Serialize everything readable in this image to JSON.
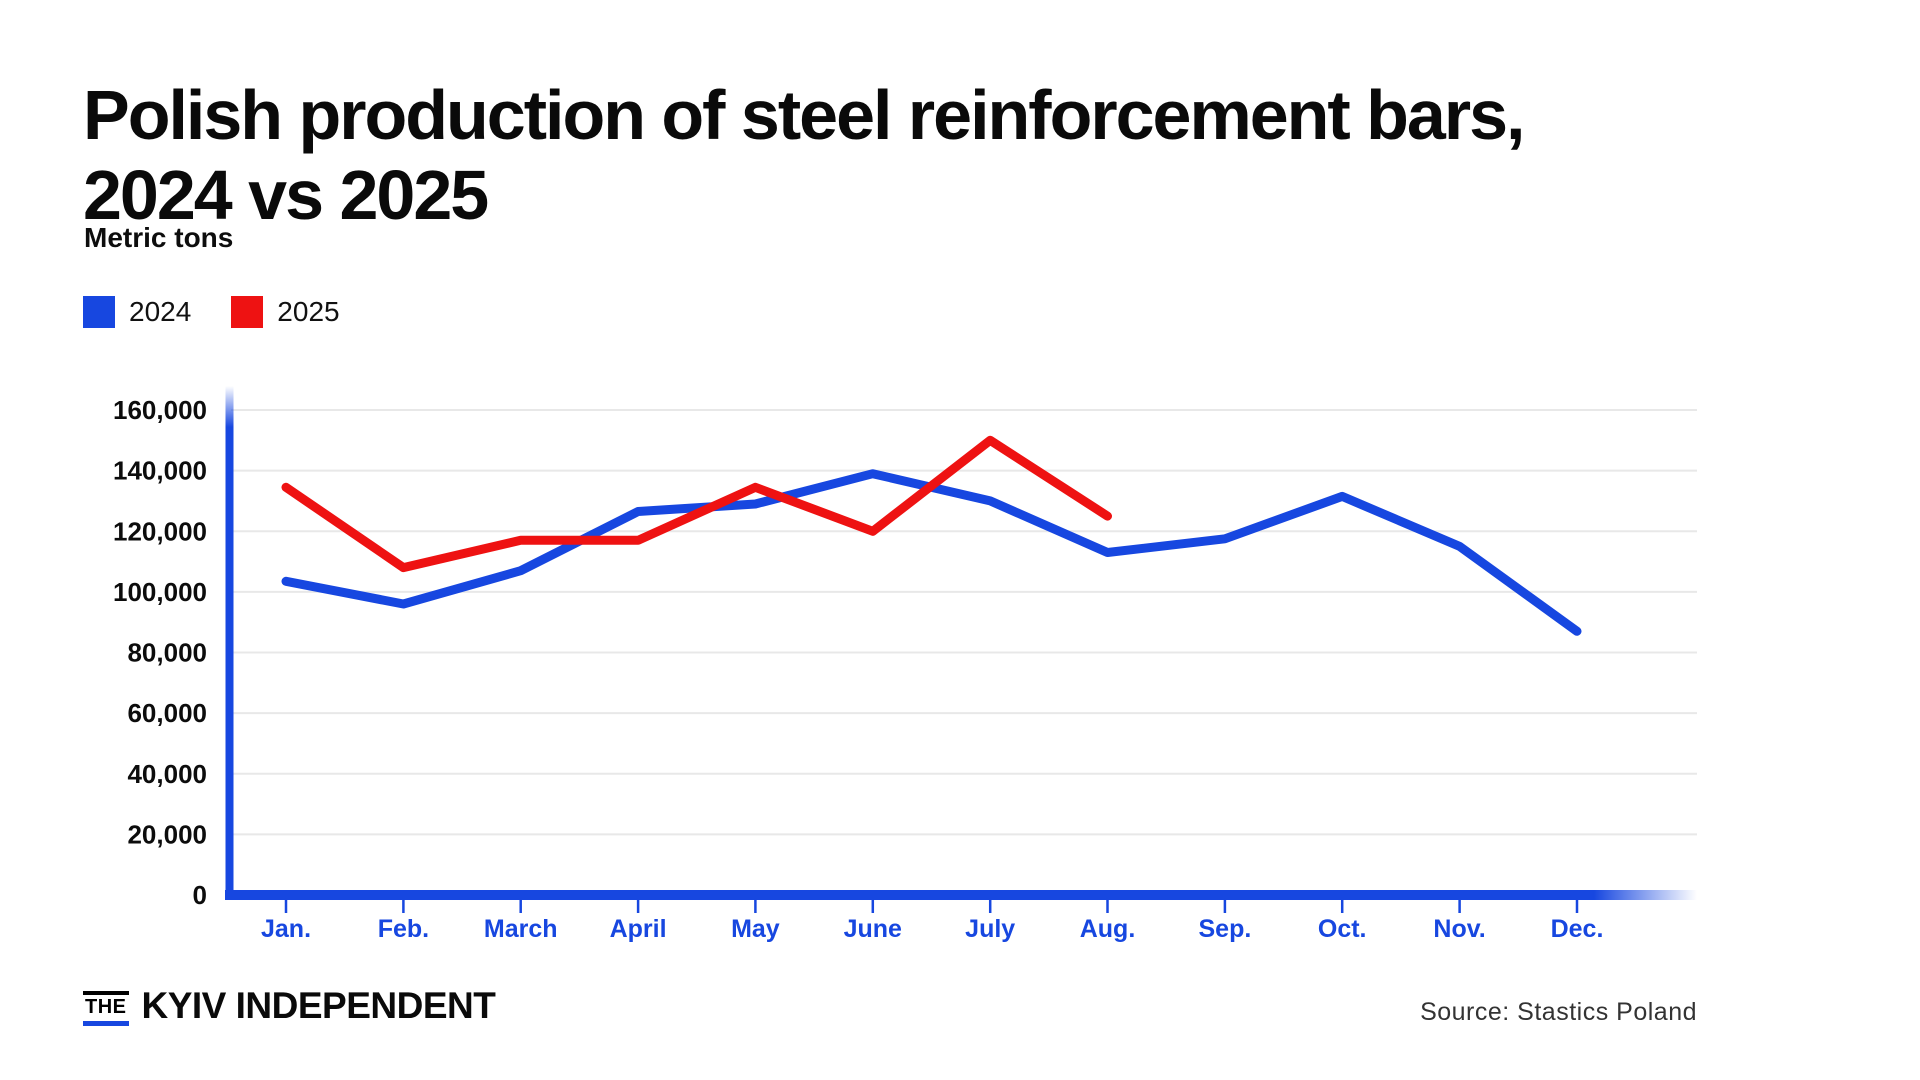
{
  "page": {
    "title_line1": "Polish production of steel reinforcement bars,",
    "title_line2": "2024 vs 2025",
    "subtitle": "Metric tons"
  },
  "legend": [
    {
      "label": "2024",
      "color": "#1747e0"
    },
    {
      "label": "2025",
      "color": "#ee1212"
    }
  ],
  "chart_data": {
    "type": "line",
    "title": "Polish production of steel reinforcement bars, 2024 vs 2025",
    "ylabel": "Metric tons",
    "xlabel": "",
    "categories": [
      "Jan.",
      "Feb.",
      "March",
      "April",
      "May",
      "June",
      "July",
      "Aug.",
      "Sep.",
      "Oct.",
      "Nov.",
      "Dec."
    ],
    "series": [
      {
        "name": "2024",
        "color": "#1747e0",
        "values": [
          103500,
          96000,
          107000,
          126500,
          129000,
          139000,
          130000,
          113000,
          117500,
          131500,
          115000,
          87000
        ]
      },
      {
        "name": "2025",
        "color": "#ee1212",
        "values": [
          134500,
          108000,
          117000,
          117000,
          134500,
          120000,
          150000,
          125000
        ]
      }
    ],
    "ylim": [
      0,
      160000
    ],
    "ytick_step": 20000,
    "ytick_labels": [
      "0",
      "20,000",
      "40,000",
      "60,000",
      "80,000",
      "100,000",
      "120,000",
      "140,000",
      "160,000"
    ],
    "grid": true,
    "legend_position": "top-left",
    "axis_color": "#1747e0",
    "gridline_color": "#e8e8e8",
    "xlabel_color": "#1747e0"
  },
  "footer": {
    "logo_the": "THE",
    "logo_name": "KYIV INDEPENDENT",
    "source": "Source: Stastics Poland"
  }
}
